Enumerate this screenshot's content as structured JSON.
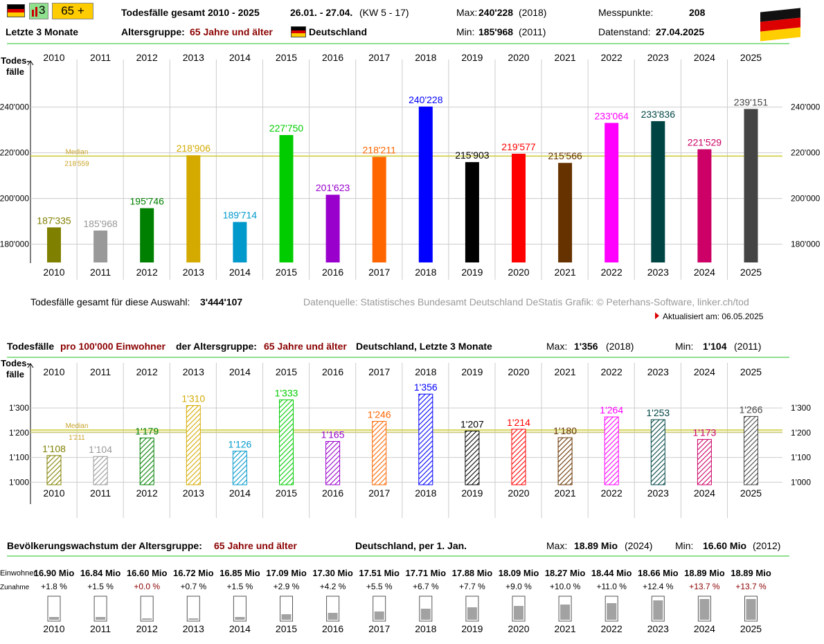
{
  "header": {
    "chart_icon_label": "3",
    "age_button": "65 +",
    "title": "Todesfälle gesamt 2010 - 2025",
    "period": "26.01. - 27.04.",
    "kw": "(KW 5 - 17)",
    "max_label": "Max:",
    "max_value": "240'228",
    "max_year": "(2018)",
    "min_label": "Min:",
    "min_value": "185'968",
    "min_year": "(2011)",
    "messpunkte_label": "Messpunkte:",
    "messpunkte_value": "208",
    "datenstand_label": "Datenstand:",
    "datenstand_value": "27.04.2025",
    "period_label": "Letzte 3 Monate",
    "age_group_label": "Altersgruppe:",
    "age_group_value": "65 Jahre und älter",
    "country": "Deutschland",
    "flag_colors": [
      "#000000",
      "#dd0000",
      "#ffce00"
    ]
  },
  "colors": {
    "2010": "#808000",
    "2011": "#999999",
    "2012": "#008000",
    "2013": "#d4aa00",
    "2014": "#0099cc",
    "2015": "#00cc00",
    "2016": "#9900cc",
    "2017": "#ff6600",
    "2018": "#0000ff",
    "2019": "#000000",
    "2020": "#ff0000",
    "2021": "#663300",
    "2022": "#ff00ff",
    "2023": "#004444",
    "2024": "#cc0066",
    "2025": "#444444"
  },
  "chart_data": [
    {
      "type": "bar",
      "ylabel": "Todes-\nfälle",
      "categories": [
        "2010",
        "2011",
        "2012",
        "2013",
        "2014",
        "2015",
        "2016",
        "2017",
        "2018",
        "2019",
        "2020",
        "2021",
        "2022",
        "2023",
        "2024",
        "2025"
      ],
      "values": [
        187335,
        185968,
        195746,
        218906,
        189714,
        227750,
        201623,
        218211,
        240228,
        215903,
        219577,
        215566,
        233064,
        233836,
        221529,
        239151
      ],
      "value_labels": [
        "187'335",
        "185'968",
        "195'746",
        "218'906",
        "189'714",
        "227'750",
        "201'623",
        "218'211",
        "240'228",
        "215'903",
        "219'577",
        "215'566",
        "233'064",
        "233'836",
        "221'529",
        "239'151"
      ],
      "yticks": [
        "180'000",
        "200'000",
        "220'000",
        "240'000"
      ],
      "ytick_values": [
        180000,
        200000,
        220000,
        240000
      ],
      "ylim": [
        172000,
        248000
      ],
      "median_label": "Median",
      "median_value_label": "218'559",
      "median": 218559,
      "grid": true
    },
    {
      "type": "bar",
      "ylabel": "Todes-\nfälle",
      "categories": [
        "2010",
        "2011",
        "2012",
        "2013",
        "2014",
        "2015",
        "2016",
        "2017",
        "2018",
        "2019",
        "2020",
        "2021",
        "2022",
        "2023",
        "2024",
        "2025"
      ],
      "values": [
        1108,
        1104,
        1179,
        1310,
        1126,
        1333,
        1165,
        1246,
        1356,
        1207,
        1214,
        1180,
        1264,
        1253,
        1173,
        1266
      ],
      "value_labels": [
        "1'108",
        "1'104",
        "1'179",
        "1'310",
        "1'126",
        "1'333",
        "1'165",
        "1'246",
        "1'356",
        "1'207",
        "1'214",
        "1'180",
        "1'264",
        "1'253",
        "1'173",
        "1'266"
      ],
      "yticks": [
        "1'000",
        "1'100",
        "1'200",
        "1'300"
      ],
      "ytick_values": [
        1000,
        1100,
        1200,
        1300
      ],
      "ylim": [
        990,
        1380
      ],
      "median_label": "Median",
      "median_value_label": "1'211",
      "median": 1211,
      "grid": true
    },
    {
      "type": "bar",
      "categories": [
        "2010",
        "2011",
        "2012",
        "2013",
        "2014",
        "2015",
        "2016",
        "2017",
        "2018",
        "2019",
        "2020",
        "2021",
        "2022",
        "2023",
        "2024",
        "2025"
      ],
      "population_labels": [
        "16.90 Mio",
        "16.84 Mio",
        "16.60 Mio",
        "16.72 Mio",
        "16.85 Mio",
        "17.09 Mio",
        "17.30 Mio",
        "17.51 Mio",
        "17.71 Mio",
        "17.88 Mio",
        "18.09 Mio",
        "18.27 Mio",
        "18.44 Mio",
        "18.66 Mio",
        "18.89 Mio",
        "18.89 Mio"
      ],
      "population_values": [
        16.9,
        16.84,
        16.6,
        16.72,
        16.85,
        17.09,
        17.3,
        17.51,
        17.71,
        17.88,
        18.09,
        18.27,
        18.44,
        18.66,
        18.89,
        18.89
      ],
      "growth_labels": [
        "+1.8 %",
        "+1.5 %",
        "+0.0 %",
        "+0.7 %",
        "+1.5 %",
        "+2.9 %",
        "+4.2 %",
        "+5.5 %",
        "+6.7 %",
        "+7.7 %",
        "+9.0 %",
        "+10.0 %",
        "+11.0 %",
        "+12.4 %",
        "+13.7 %",
        "+13.7 %"
      ],
      "growth_values": [
        1.8,
        1.5,
        0.0,
        0.7,
        1.5,
        2.9,
        4.2,
        5.5,
        6.7,
        7.7,
        9.0,
        10.0,
        11.0,
        12.4,
        13.7,
        13.7
      ],
      "row_label_population": "Einwohner",
      "row_label_growth": "Zunahme"
    }
  ],
  "info": {
    "total_label": "Todesfälle gesamt für diese Auswahl:",
    "total_value": "3'444'107",
    "source": "Datenquelle: Statistisches Bundesamt Deutschland DeStatis  Grafik: © Peterhans-Software, linker.ch/tod",
    "updated": "Aktualisiert am: 06.05.2025"
  },
  "section2": {
    "title_a": "Todesfälle",
    "title_b": "pro 100'000 Einwohner",
    "title_c": "der Altersgruppe:",
    "title_d": "65 Jahre und älter",
    "title_e": "Deutschland, Letzte 3 Monate",
    "max_label": "Max:",
    "max_value": "1'356",
    "max_year": "(2018)",
    "min_label": "Min:",
    "min_value": "1'104",
    "min_year": "(2011)"
  },
  "section3": {
    "title_a": "Bevölkerungswachstum der Altersgruppe:",
    "title_b": "65 Jahre und älter",
    "title_c": "Deutschland, per 1. Jan.",
    "max_label": "Max:",
    "max_value": "18.89 Mio",
    "max_year": "(2024)",
    "min_label": "Min:",
    "min_value": "16.60 Mio",
    "min_year": "(2012)"
  }
}
